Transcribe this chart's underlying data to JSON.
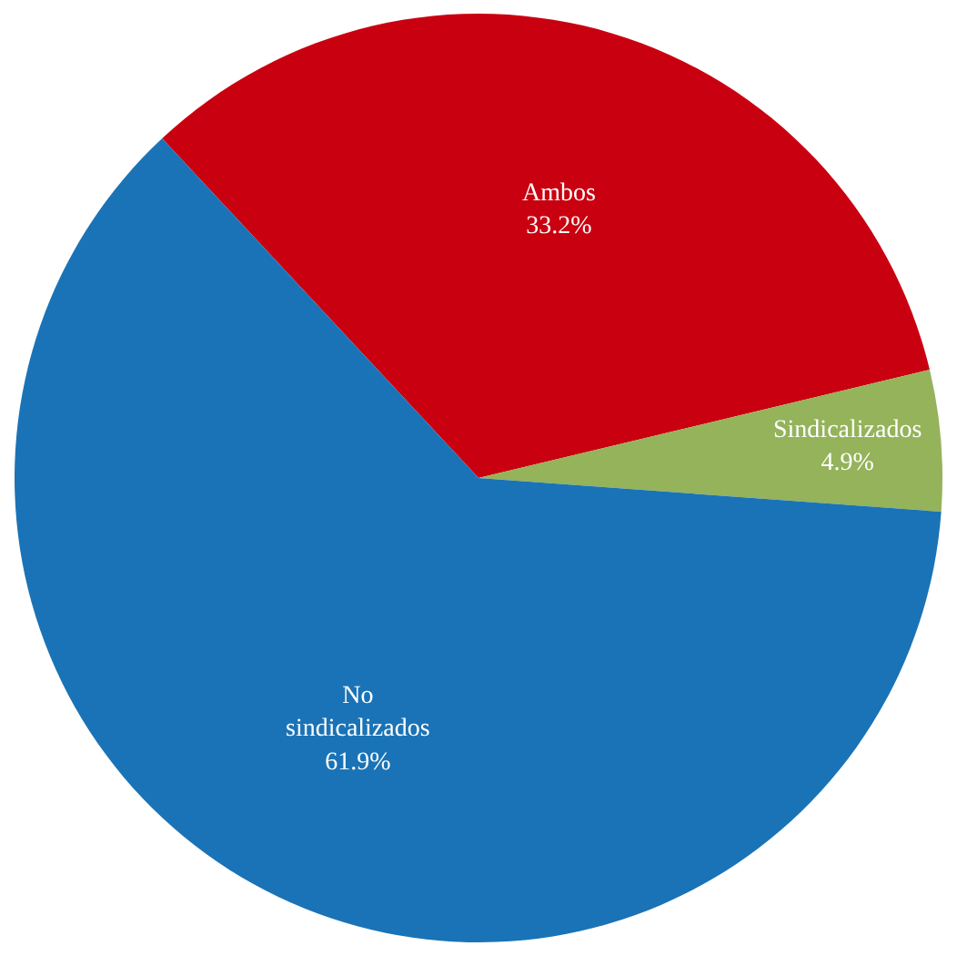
{
  "chart_data": {
    "type": "pie",
    "categories": [
      "Ambos",
      "Sindicalizados",
      "No sindicalizados"
    ],
    "values": [
      33.2,
      4.9,
      61.9
    ],
    "value_labels": [
      "33.2%",
      "4.9%",
      "61.9%"
    ],
    "colors": [
      "#c90010",
      "#94b35a",
      "#1a73b6"
    ]
  }
}
